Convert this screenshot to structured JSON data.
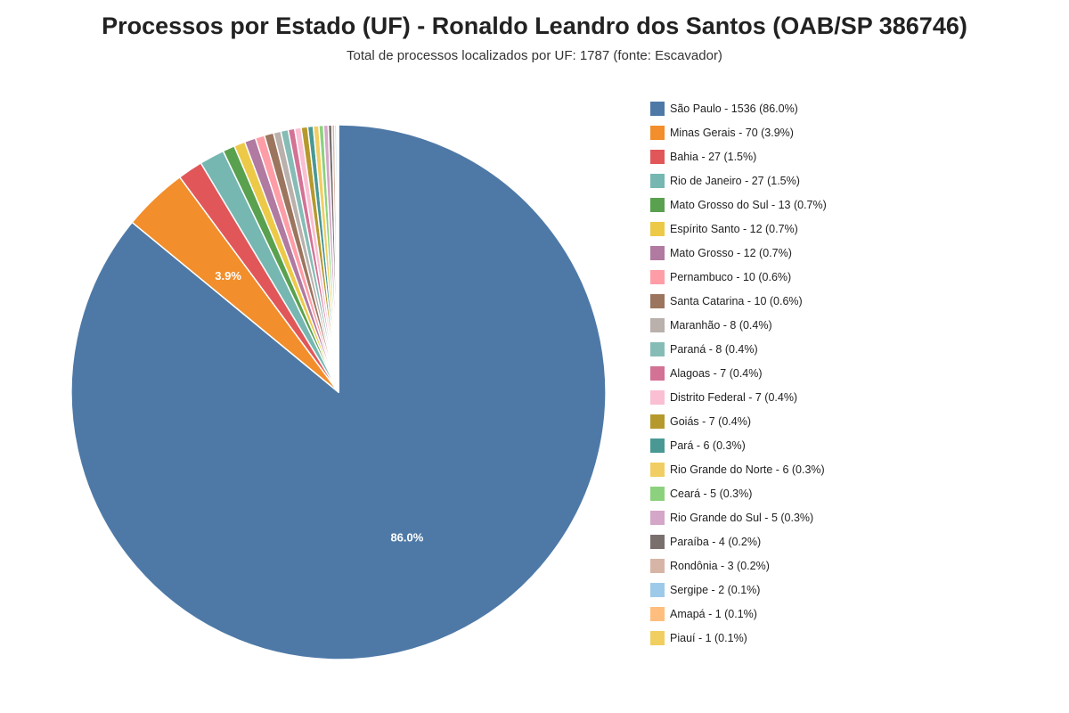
{
  "title": "Processos por Estado (UF) - Ronaldo Leandro dos Santos (OAB/SP 386746)",
  "subtitle": "Total de processos localizados por UF: 1787 (fonte: Escavador)",
  "chart_data": {
    "type": "pie",
    "title": "Processos por Estado (UF) - Ronaldo Leandro dos Santos (OAB/SP 386746)",
    "subtitle": "Total de processos localizados por UF: 1787 (fonte: Escavador)",
    "total": 1787,
    "start_angle": "top",
    "direction": "clockwise",
    "legend_position": "right",
    "slice_labels": [
      {
        "slice": "São Paulo",
        "text": "86.0%"
      },
      {
        "slice": "Minas Gerais",
        "text": "3.9%"
      }
    ],
    "slices": [
      {
        "name": "São Paulo",
        "value": 1536,
        "percent": 86.0,
        "color": "#4e79a7",
        "legend": "São Paulo - 1536 (86.0%)"
      },
      {
        "name": "Minas Gerais",
        "value": 70,
        "percent": 3.9,
        "color": "#f28e2b",
        "legend": "Minas Gerais - 70 (3.9%)"
      },
      {
        "name": "Bahia",
        "value": 27,
        "percent": 1.5,
        "color": "#e15759",
        "legend": "Bahia - 27 (1.5%)"
      },
      {
        "name": "Rio de Janeiro",
        "value": 27,
        "percent": 1.5,
        "color": "#76b7b2",
        "legend": "Rio de Janeiro - 27 (1.5%)"
      },
      {
        "name": "Mato Grosso do Sul",
        "value": 13,
        "percent": 0.7,
        "color": "#59a14f",
        "legend": "Mato Grosso do Sul - 13 (0.7%)"
      },
      {
        "name": "Espírito Santo",
        "value": 12,
        "percent": 0.7,
        "color": "#edc948",
        "legend": "Espírito Santo - 12 (0.7%)"
      },
      {
        "name": "Mato Grosso",
        "value": 12,
        "percent": 0.7,
        "color": "#b07aa1",
        "legend": "Mato Grosso - 12 (0.7%)"
      },
      {
        "name": "Pernambuco",
        "value": 10,
        "percent": 0.6,
        "color": "#ff9da7",
        "legend": "Pernambuco - 10 (0.6%)"
      },
      {
        "name": "Santa Catarina",
        "value": 10,
        "percent": 0.6,
        "color": "#9c755f",
        "legend": "Santa Catarina - 10 (0.6%)"
      },
      {
        "name": "Maranhão",
        "value": 8,
        "percent": 0.4,
        "color": "#bab0ac",
        "legend": "Maranhão - 8 (0.4%)"
      },
      {
        "name": "Paraná",
        "value": 8,
        "percent": 0.4,
        "color": "#86bcb6",
        "legend": "Paraná - 8 (0.4%)"
      },
      {
        "name": "Alagoas",
        "value": 7,
        "percent": 0.4,
        "color": "#d37295",
        "legend": "Alagoas - 7 (0.4%)"
      },
      {
        "name": "Distrito Federal",
        "value": 7,
        "percent": 0.4,
        "color": "#fabfd2",
        "legend": "Distrito Federal - 7 (0.4%)"
      },
      {
        "name": "Goiás",
        "value": 7,
        "percent": 0.4,
        "color": "#b6992d",
        "legend": "Goiás - 7 (0.4%)"
      },
      {
        "name": "Pará",
        "value": 6,
        "percent": 0.3,
        "color": "#499894",
        "legend": "Pará - 6 (0.3%)"
      },
      {
        "name": "Rio Grande do Norte",
        "value": 6,
        "percent": 0.3,
        "color": "#f1ce63",
        "legend": "Rio Grande do Norte - 6 (0.3%)"
      },
      {
        "name": "Ceará",
        "value": 5,
        "percent": 0.3,
        "color": "#8cd17d",
        "legend": "Ceará - 5 (0.3%)"
      },
      {
        "name": "Rio Grande do Sul",
        "value": 5,
        "percent": 0.3,
        "color": "#d4a6c8",
        "legend": "Rio Grande do Sul - 5 (0.3%)"
      },
      {
        "name": "Paraíba",
        "value": 4,
        "percent": 0.2,
        "color": "#79706e",
        "legend": "Paraíba - 4 (0.2%)"
      },
      {
        "name": "Rondônia",
        "value": 3,
        "percent": 0.2,
        "color": "#d7b5a6",
        "legend": "Rondônia - 3 (0.2%)"
      },
      {
        "name": "Sergipe",
        "value": 2,
        "percent": 0.1,
        "color": "#9ecae9",
        "legend": "Sergipe - 2 (0.1%)"
      },
      {
        "name": "Amapá",
        "value": 1,
        "percent": 0.1,
        "color": "#ffbe7d",
        "legend": "Amapá - 1 (0.1%)"
      },
      {
        "name": "Piauí",
        "value": 1,
        "percent": 0.1,
        "color": "#f0cf60",
        "legend": "Piauí - 1 (0.1%)"
      }
    ]
  }
}
